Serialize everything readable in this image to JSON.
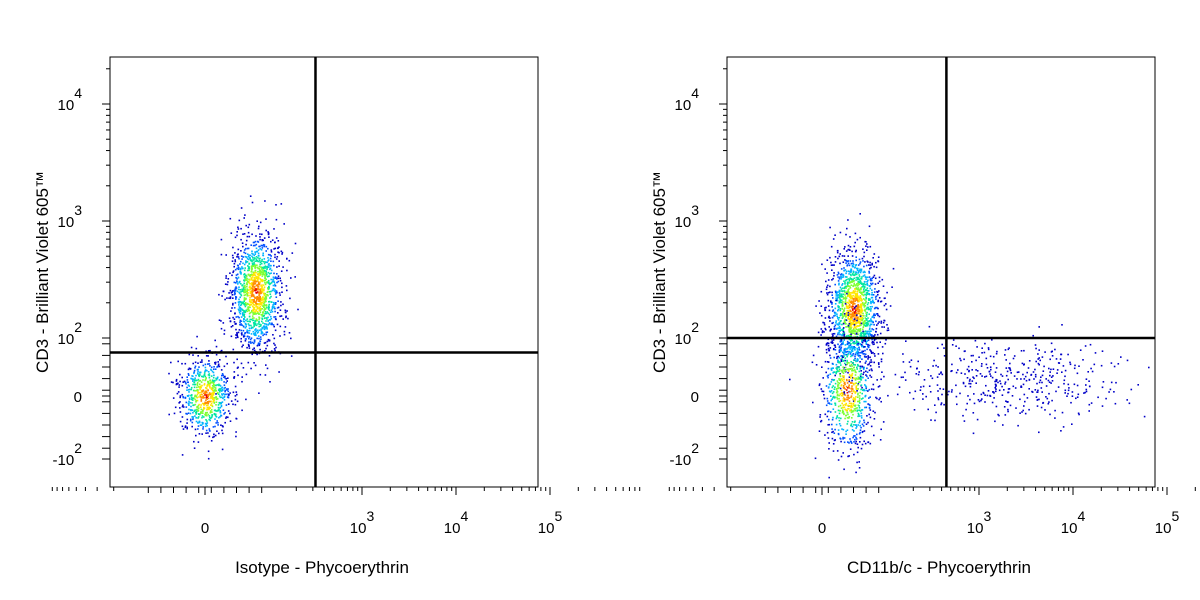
{
  "chart_data": [
    {
      "type": "scatter",
      "xlabel": "Isotype - Phycoerythrin",
      "ylabel": "CD3 - Brilliant Violet 605™",
      "x_ticks": [
        {
          "value": 0,
          "base": "0",
          "exp": ""
        },
        {
          "value": 1000,
          "base": "10",
          "exp": "3"
        },
        {
          "value": 10000,
          "base": "10",
          "exp": "4"
        },
        {
          "value": 100000,
          "base": "10",
          "exp": "5"
        }
      ],
      "y_ticks": [
        {
          "value": -100,
          "base": "-10",
          "exp": "2"
        },
        {
          "value": 0,
          "base": "0",
          "exp": ""
        },
        {
          "value": 100,
          "base": "10",
          "exp": "2"
        },
        {
          "value": 1000,
          "base": "10",
          "exp": "3"
        },
        {
          "value": 10000,
          "base": "10",
          "exp": "4"
        }
      ],
      "quadrant_gate": {
        "x": 320,
        "y": 75
      },
      "clusters": [
        {
          "x": 0,
          "y": 0,
          "count": 700
        },
        {
          "x": 80,
          "y": 250,
          "count": 1300
        }
      ]
    },
    {
      "type": "scatter",
      "xlabel": "CD11b/c - Phycoerythrin",
      "ylabel": "CD3 - Brilliant Violet 605™",
      "x_ticks": [
        {
          "value": 0,
          "base": "0",
          "exp": ""
        },
        {
          "value": 1000,
          "base": "10",
          "exp": "3"
        },
        {
          "value": 10000,
          "base": "10",
          "exp": "4"
        },
        {
          "value": 100000,
          "base": "10",
          "exp": "5"
        }
      ],
      "y_ticks": [
        {
          "value": -100,
          "base": "-10",
          "exp": "2"
        },
        {
          "value": 0,
          "base": "0",
          "exp": ""
        },
        {
          "value": 100,
          "base": "10",
          "exp": "2"
        },
        {
          "value": 1000,
          "base": "10",
          "exp": "3"
        },
        {
          "value": 10000,
          "base": "10",
          "exp": "4"
        }
      ],
      "quadrant_gate": {
        "x": 450,
        "y": 100
      },
      "clusters": [
        {
          "x": 50,
          "y": 180,
          "count": 1400
        },
        {
          "x": 40,
          "y": 10,
          "count": 700
        },
        {
          "x": 2000,
          "y": 30,
          "count": 450
        }
      ]
    }
  ],
  "colors": {
    "density": [
      "#0000c8",
      "#0050ff",
      "#00b4ff",
      "#00e6a0",
      "#7dff32",
      "#ffe600",
      "#ff8c00",
      "#e60000"
    ]
  }
}
